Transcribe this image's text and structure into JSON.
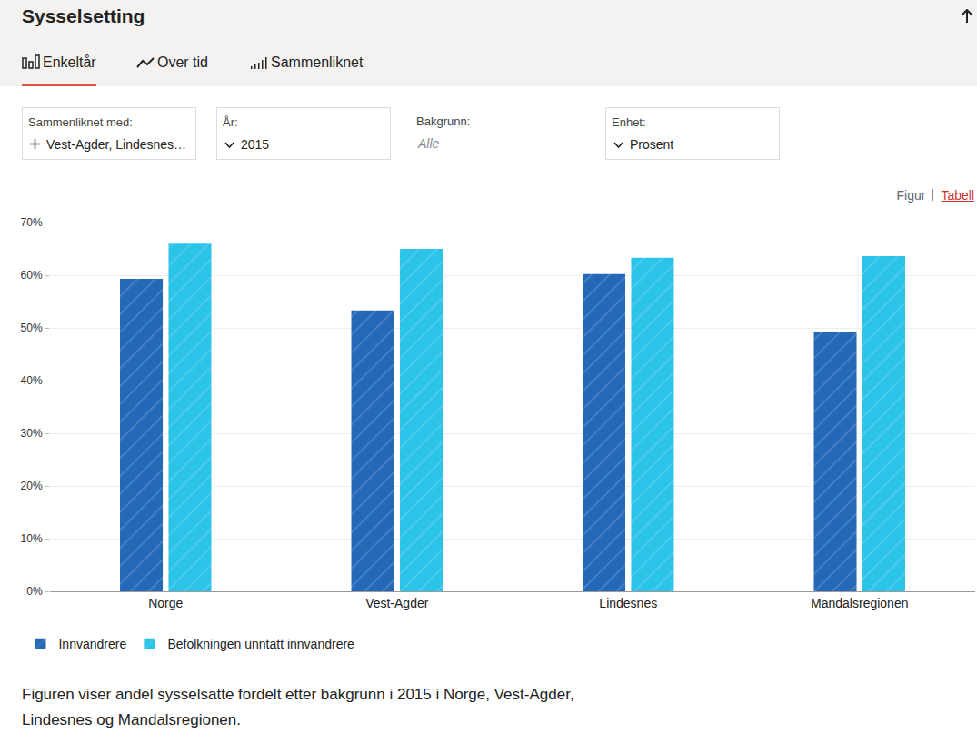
{
  "page": {
    "title": "Sysselsetting",
    "tabs": [
      "Enkeltår",
      "Over tid",
      "Sammenliknet"
    ],
    "active_tab": "Enkeltår",
    "filters": [
      {
        "label": "Sammenliknet med:",
        "value": "Vest-Agder, Lindesnes…"
      },
      {
        "label": "År:",
        "value": "2015"
      },
      {
        "label": "Bakgrunn:",
        "value": "Alle"
      },
      {
        "label": "Enhet:",
        "value": "Prosent"
      }
    ],
    "views": [
      "Figur",
      "Tabell"
    ],
    "active_view": "Figur",
    "caption": "Figuren viser andel sysselsatte fordelt etter bakgrunn i 2015 i Norge, Vest-Agder, Lindesnes og Mandalsregionen."
  },
  "chart_data": {
    "type": "bar",
    "categories": [
      "Norge",
      "Vest-Agder",
      "Lindesnes",
      "Mandalsregionen"
    ],
    "series": [
      {
        "name": "Innvandrere",
        "color": "#2468b8",
        "values": [
          59.3,
          53.3,
          60.2,
          49.3
        ]
      },
      {
        "name": "Befolkningen unntatt innvandrere",
        "color": "#2cc3e8",
        "values": [
          66.0,
          65.0,
          63.3,
          63.6
        ]
      }
    ],
    "ylim": [
      0,
      70
    ],
    "yticks": [
      {
        "value": 0,
        "label": "0%"
      },
      {
        "value": 10,
        "label": "10%"
      },
      {
        "value": 20,
        "label": "20%"
      },
      {
        "value": 30,
        "label": "30%"
      },
      {
        "value": 40,
        "label": "40%"
      },
      {
        "value": 50,
        "label": "50%"
      },
      {
        "value": 60,
        "label": "60%"
      },
      {
        "value": 70,
        "label": "70%"
      }
    ],
    "grid": true,
    "legend": "bottom-left"
  }
}
